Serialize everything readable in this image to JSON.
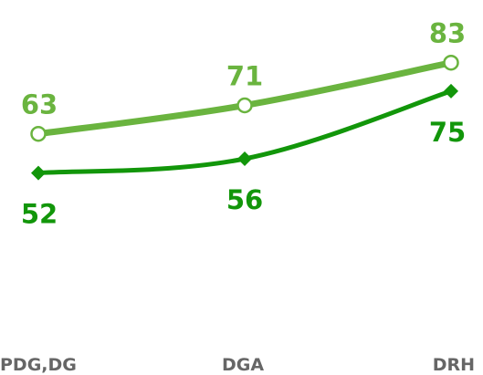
{
  "chart_data": {
    "type": "line",
    "title": "",
    "xlabel": "",
    "ylabel": "",
    "categories": [
      "PDG,DG",
      "DGA",
      "DRH"
    ],
    "ylim": [
      0,
      100
    ],
    "grid": false,
    "legend": "none",
    "series": [
      {
        "values": [
          63,
          71,
          83
        ],
        "color": "#6ab43f",
        "marker": "open-circle",
        "label_position": "above"
      },
      {
        "values": [
          52,
          56,
          75
        ],
        "color": "#12960a",
        "marker": "diamond",
        "label_position": "below"
      }
    ]
  }
}
